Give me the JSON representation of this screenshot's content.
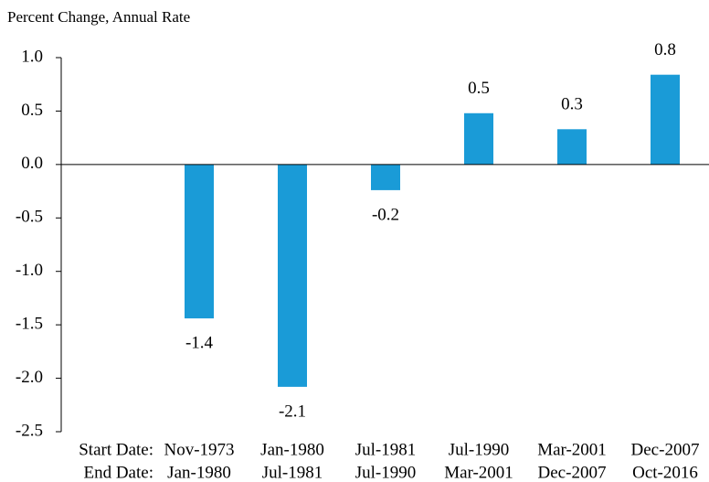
{
  "chart_data": {
    "type": "bar",
    "subtitle": "Percent Change, Annual Rate",
    "row_labels": [
      "Start Date:",
      "End Date:"
    ],
    "categories": [
      "Nov-1973",
      "Jan-1980",
      "Jul-1981",
      "Jul-1990",
      "Mar-2001",
      "Dec-2007"
    ],
    "end_dates": [
      "Jan-1980",
      "Jul-1981",
      "Jul-1990",
      "Mar-2001",
      "Dec-2007",
      "Oct-2016"
    ],
    "values": [
      -1.44,
      -2.08,
      -0.24,
      0.48,
      0.33,
      0.84
    ],
    "value_labels": [
      "-1.4",
      "-2.1",
      "-0.2",
      "0.5",
      "0.3",
      "0.8"
    ],
    "color": "#1a9bd7",
    "ylim": [
      -2.5,
      1.0
    ],
    "yticks": [
      {
        "value": 1.0,
        "label": "1.0"
      },
      0.5,
      {
        "value": 0.0,
        "label": "0.0"
      },
      -0.5,
      {
        "value": -1.0,
        "label": "-1.0"
      },
      -1.5,
      {
        "value": -2.0,
        "label": "-2.0"
      },
      -2.5
    ]
  }
}
